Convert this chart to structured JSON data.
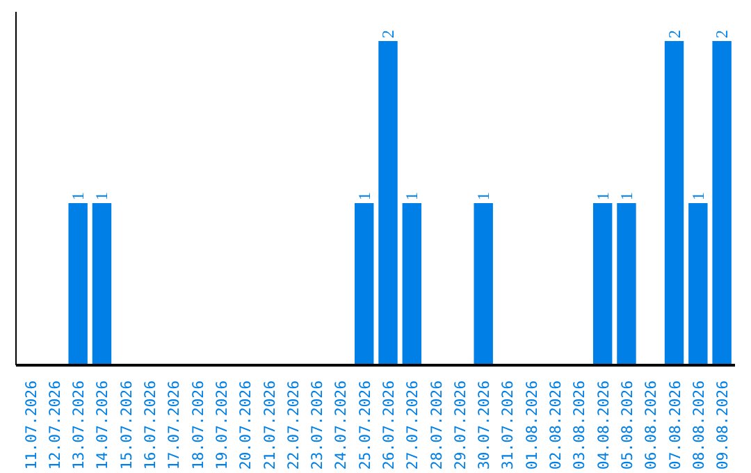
{
  "chart_data": {
    "type": "bar",
    "categories": [
      "11.07.2026",
      "12.07.2026",
      "13.07.2026",
      "14.07.2026",
      "15.07.2026",
      "16.07.2026",
      "17.07.2026",
      "18.07.2026",
      "19.07.2026",
      "20.07.2026",
      "21.07.2026",
      "22.07.2026",
      "23.07.2026",
      "24.07.2026",
      "25.07.2026",
      "26.07.2026",
      "27.07.2026",
      "28.07.2026",
      "29.07.2026",
      "30.07.2026",
      "31.07.2026",
      "01.08.2026",
      "02.08.2026",
      "03.08.2026",
      "04.08.2026",
      "05.08.2026",
      "06.08.2026",
      "07.08.2026",
      "08.08.2026",
      "09.08.2026"
    ],
    "values": [
      0,
      0,
      1,
      1,
      0,
      0,
      0,
      0,
      0,
      0,
      0,
      0,
      0,
      0,
      1,
      2,
      1,
      0,
      0,
      1,
      0,
      0,
      0,
      0,
      1,
      1,
      0,
      2,
      1,
      2
    ],
    "value_labels": [
      null,
      null,
      "1",
      "1",
      null,
      null,
      null,
      null,
      null,
      null,
      null,
      null,
      null,
      null,
      "1",
      "2",
      "1",
      null,
      null,
      "1",
      null,
      null,
      null,
      null,
      "1",
      "1",
      null,
      "2",
      "1",
      "2"
    ],
    "color": "#0080e6",
    "tick_labels": "x"
  }
}
